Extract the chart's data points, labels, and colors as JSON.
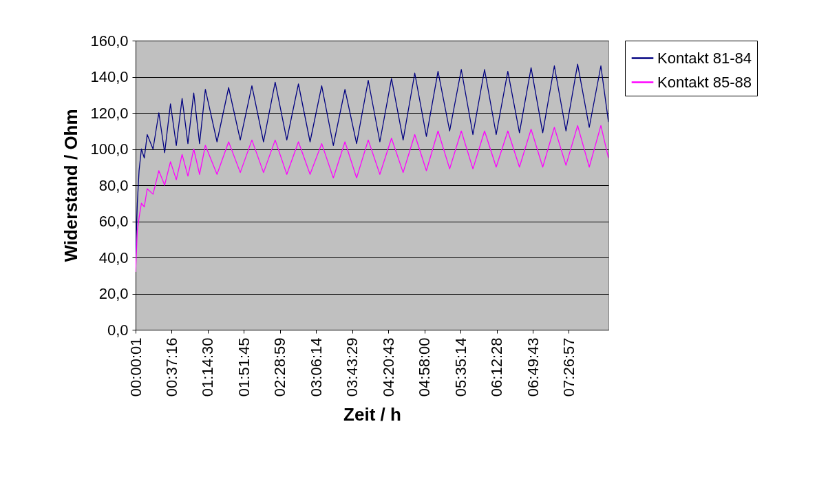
{
  "chart_data": {
    "type": "line",
    "xlabel": "Zeit / h",
    "ylabel": "Widerstand / Ohm",
    "legend": "right",
    "grid": "y",
    "marker": "none",
    "line_style": "solid",
    "xlim": [
      0.0003,
      8.13
    ],
    "xticks": [
      {
        "value": 0.0003,
        "label": "00:00:01"
      },
      {
        "value": 0.6211,
        "label": "00:37:16"
      },
      {
        "value": 1.2417,
        "label": "01:14:30"
      },
      {
        "value": 1.8625,
        "label": "01:51:45"
      },
      {
        "value": 2.4831,
        "label": "02:28:59"
      },
      {
        "value": 3.1039,
        "label": "03:06:14"
      },
      {
        "value": 3.7247,
        "label": "03:43:29"
      },
      {
        "value": 4.3453,
        "label": "04:20:43"
      },
      {
        "value": 4.9667,
        "label": "04:58:00"
      },
      {
        "value": 5.5872,
        "label": "05:35:14"
      },
      {
        "value": 6.2078,
        "label": "06:12:28"
      },
      {
        "value": 6.8286,
        "label": "06:49:43"
      },
      {
        "value": 7.4492,
        "label": "07:26:57"
      }
    ],
    "ylim": [
      0,
      160
    ],
    "yticks": [
      {
        "value": 0,
        "label": "0,0"
      },
      {
        "value": 20,
        "label": "20,0"
      },
      {
        "value": 40,
        "label": "40,0"
      },
      {
        "value": 60,
        "label": "60,0"
      },
      {
        "value": 80,
        "label": "80,0"
      },
      {
        "value": 100,
        "label": "100,0"
      },
      {
        "value": 120,
        "label": "120,0"
      },
      {
        "value": 140,
        "label": "140,0"
      },
      {
        "value": 160,
        "label": "160,0"
      }
    ],
    "x": [
      0.0003,
      0.03,
      0.06,
      0.1,
      0.15,
      0.2,
      0.3,
      0.4,
      0.5,
      0.6,
      0.7,
      0.8,
      0.9,
      1.0,
      1.1,
      1.2,
      1.4,
      1.6,
      1.8,
      2.0,
      2.2,
      2.4,
      2.6,
      2.8,
      3.0,
      3.2,
      3.4,
      3.6,
      3.8,
      4.0,
      4.2,
      4.4,
      4.6,
      4.8,
      5.0,
      5.2,
      5.4,
      5.6,
      5.8,
      6.0,
      6.2,
      6.4,
      6.6,
      6.8,
      7.0,
      7.2,
      7.4,
      7.6,
      7.8,
      8.0,
      8.13
    ],
    "series": [
      {
        "name": "Kontakt 81-84",
        "color": "#000080",
        "values": [
          40,
          70,
          88,
          100,
          95,
          108,
          100,
          120,
          98,
          125,
          102,
          128,
          103,
          131,
          103,
          133,
          104,
          134,
          105,
          135,
          104,
          137,
          105,
          136,
          104,
          135,
          102,
          133,
          103,
          138,
          104,
          139,
          105,
          142,
          107,
          143,
          110,
          144,
          108,
          144,
          108,
          143,
          109,
          145,
          109,
          146,
          110,
          147,
          112,
          146,
          115
        ]
      },
      {
        "name": "Kontakt 85-88",
        "color": "#ff00ff",
        "values": [
          32,
          55,
          62,
          70,
          68,
          78,
          75,
          88,
          80,
          93,
          83,
          97,
          85,
          100,
          86,
          102,
          86,
          104,
          87,
          105,
          87,
          105,
          86,
          104,
          86,
          103,
          84,
          104,
          84,
          105,
          86,
          106,
          87,
          108,
          88,
          110,
          89,
          110,
          89,
          110,
          90,
          110,
          90,
          111,
          90,
          112,
          91,
          113,
          90,
          113,
          95
        ]
      }
    ]
  }
}
